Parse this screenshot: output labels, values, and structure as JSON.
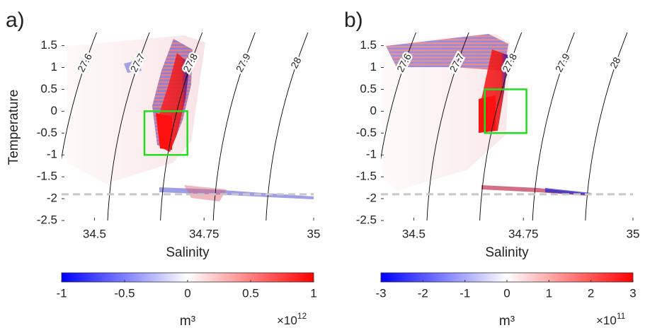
{
  "chart_data": [
    {
      "type": "heatmap",
      "panel_label": "a)",
      "xlabel": "Salinity",
      "ylabel": "Temperature",
      "xlim": [
        34.425,
        35
      ],
      "ylim": [
        -2.5,
        1.8
      ],
      "xticks": [
        34.5,
        34.75,
        35
      ],
      "yticks": [
        -2.5,
        -2,
        -1.5,
        -1,
        -0.5,
        0,
        0.5,
        1,
        1.5
      ],
      "isopycnals": [
        27.6,
        27.7,
        27.8,
        27.9,
        28
      ],
      "contour_color": "#000000",
      "box": {
        "salinity": [
          34.614,
          34.712
        ],
        "temperature": [
          -1,
          0
        ],
        "color": "#22dd22"
      },
      "reference_line": {
        "temperature": -1.9,
        "color": "#c8c8c8"
      },
      "colorbar": {
        "lim": [
          -1,
          1
        ],
        "ticks": [
          -1,
          -0.5,
          0,
          0.5,
          1
        ],
        "colors": [
          "#0000ff",
          "#ffffff",
          "#ff0000"
        ],
        "unit": "m³",
        "multiplier": {
          "base": "×10",
          "exponent": 12
        }
      }
    },
    {
      "type": "heatmap",
      "panel_label": "b)",
      "xlabel": "Salinity",
      "xlim": [
        34.425,
        35
      ],
      "ylim": [
        -2.5,
        1.8
      ],
      "xticks": [
        34.5,
        34.75,
        35
      ],
      "yticks": [
        -2.5,
        -2,
        -1.5,
        -1,
        -0.5,
        0,
        0.5,
        1,
        1.5
      ],
      "isopycnals": [
        27.6,
        27.7,
        27.8,
        27.9,
        28
      ],
      "contour_color": "#000000",
      "box": {
        "salinity": [
          34.662,
          34.757
        ],
        "temperature": [
          -0.5,
          0.5
        ],
        "color": "#22dd22"
      },
      "reference_line": {
        "temperature": -1.9,
        "color": "#c8c8c8"
      },
      "colorbar": {
        "lim": [
          -3,
          3
        ],
        "ticks": [
          -3,
          -2,
          -1,
          0,
          1,
          2,
          3
        ],
        "colors": [
          "#0000ff",
          "#ffffff",
          "#ff0000"
        ],
        "unit": "m³",
        "multiplier": {
          "base": "×10",
          "exponent": 11
        }
      }
    }
  ]
}
